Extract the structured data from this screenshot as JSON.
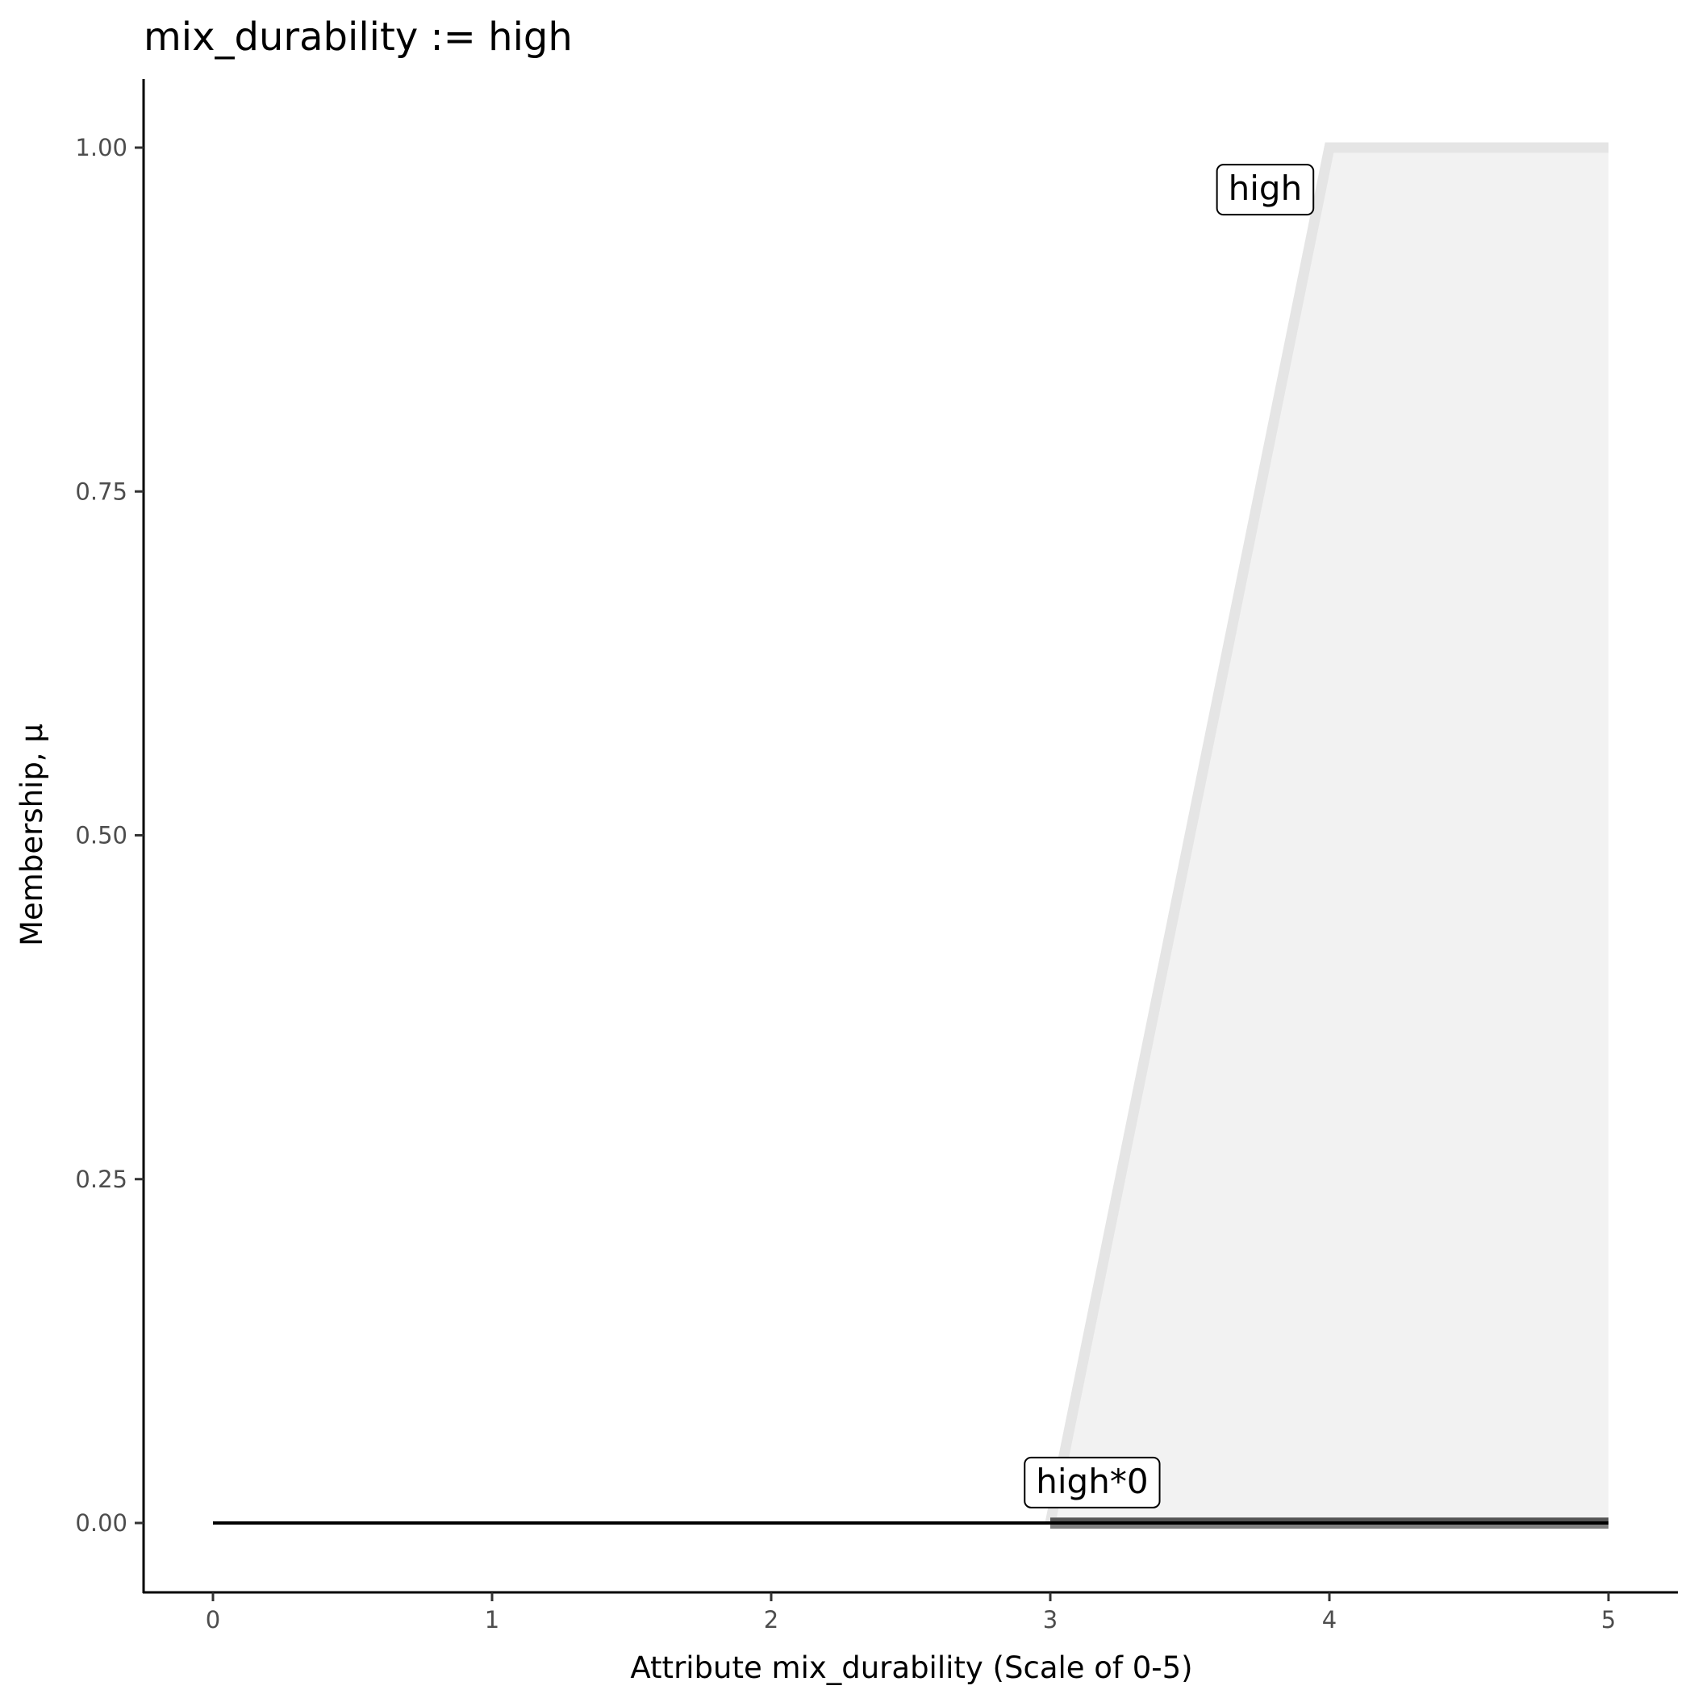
{
  "chart_data": {
    "type": "area",
    "title": "mix_durability := high",
    "xlabel": "Attribute mix_durability (Scale of 0-5)",
    "ylabel": "Membership, μ",
    "xlim": [
      -0.25,
      5.25
    ],
    "ylim": [
      -0.05,
      1.05
    ],
    "xticks": [
      "0",
      "1",
      "2",
      "3",
      "4",
      "5"
    ],
    "xtick_values": [
      0,
      1,
      2,
      3,
      4,
      5
    ],
    "yticks": [
      "0.00",
      "0.25",
      "0.50",
      "0.75",
      "1.00"
    ],
    "ytick_values": [
      0,
      0.25,
      0.5,
      0.75,
      1.0
    ],
    "grid": false,
    "series": [
      {
        "label": "high",
        "x": [
          3,
          4,
          5
        ],
        "y": [
          0,
          1,
          1
        ],
        "fill": "#f2f2f2",
        "line": "#e5e5e5",
        "label_at": [
          3.77,
          0.97
        ]
      },
      {
        "label": "high*0",
        "x": [
          3,
          4,
          5
        ],
        "y": [
          0,
          0,
          0
        ],
        "fill": "#7f7f7f",
        "line": "#555555",
        "label_at": [
          3.15,
          0.03
        ]
      }
    ],
    "baseline": {
      "x": [
        0,
        5
      ],
      "y": [
        0,
        0
      ],
      "color": "#000000"
    }
  }
}
